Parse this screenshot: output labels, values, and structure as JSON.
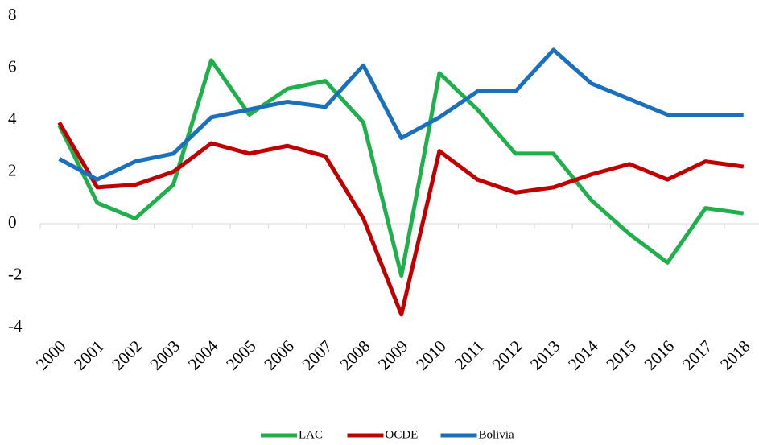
{
  "chart_data": {
    "type": "line",
    "categories": [
      "2000",
      "2001",
      "2002",
      "2003",
      "2004",
      "2005",
      "2006",
      "2007",
      "2008",
      "2009",
      "2010",
      "2011",
      "2012",
      "2013",
      "2014",
      "2015",
      "2016",
      "2017",
      "2018"
    ],
    "series": [
      {
        "name": "LAC",
        "color": "#1fb04b",
        "values": [
          3.8,
          0.8,
          0.2,
          1.5,
          6.3,
          4.2,
          5.2,
          5.5,
          3.9,
          -2.0,
          5.8,
          4.4,
          2.7,
          2.7,
          0.9,
          -0.4,
          -1.5,
          0.6,
          0.4
        ]
      },
      {
        "name": "OCDE",
        "color": "#c00000",
        "values": [
          3.9,
          1.4,
          1.5,
          2.0,
          3.1,
          2.7,
          3.0,
          2.6,
          0.2,
          -3.5,
          2.8,
          1.7,
          1.2,
          1.4,
          1.9,
          2.3,
          1.7,
          2.4,
          2.2
        ]
      },
      {
        "name": "Bolivia",
        "color": "#1b70bd",
        "values": [
          2.5,
          1.7,
          2.4,
          2.7,
          4.1,
          4.4,
          4.7,
          4.5,
          6.1,
          3.3,
          4.1,
          5.1,
          5.1,
          6.7,
          5.4,
          4.8,
          4.2,
          4.2,
          4.2
        ]
      }
    ],
    "ylim": [
      -4,
      8
    ],
    "yticks": [
      -4,
      -2,
      0,
      2,
      4,
      6,
      8
    ],
    "grid": false,
    "legend": "bottom"
  }
}
